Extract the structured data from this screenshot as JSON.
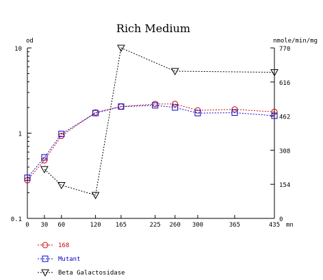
{
  "chart_data": {
    "type": "line",
    "title": "Rich Medium",
    "left_axis": {
      "label": "od",
      "scale": "log",
      "range": [
        0.1,
        10
      ],
      "tick_labels": [
        "10",
        "1",
        "0.1"
      ],
      "tick_values": [
        10,
        1,
        0.1
      ]
    },
    "right_axis": {
      "label": "nmole/min/mg",
      "scale": "linear",
      "range": [
        0,
        770
      ],
      "tick_labels": [
        "770",
        "616",
        "462",
        "308",
        "154",
        "0"
      ],
      "tick_values": [
        770,
        616,
        462,
        308,
        154,
        0
      ]
    },
    "x_axis": {
      "label": "mn",
      "range": [
        0,
        435
      ],
      "tick_labels": [
        "0",
        "30",
        "60",
        "120",
        "165",
        "225",
        "260",
        "300",
        "365",
        "435"
      ],
      "tick_values": [
        0,
        30,
        60,
        120,
        165,
        225,
        260,
        300,
        365,
        435
      ]
    },
    "series": [
      {
        "name": "168",
        "axis": "left",
        "color": "#cc0000",
        "marker": "circle",
        "x": [
          0,
          30,
          60,
          120,
          165,
          225,
          260,
          300,
          365,
          435
        ],
        "y": [
          0.28,
          0.48,
          0.93,
          1.75,
          2.05,
          2.2,
          2.2,
          1.85,
          1.9,
          1.78
        ]
      },
      {
        "name": "Mutant",
        "axis": "left",
        "color": "#0000cc",
        "marker": "square",
        "x": [
          0,
          30,
          60,
          120,
          165,
          225,
          260,
          300,
          365,
          435
        ],
        "y": [
          0.3,
          0.52,
          0.98,
          1.72,
          2.05,
          2.12,
          2.0,
          1.72,
          1.74,
          1.6
        ]
      },
      {
        "name": "Beta Galactosidase",
        "axis": "right",
        "color": "#000000",
        "marker": "triangle-down",
        "x": [
          30,
          60,
          120,
          165,
          260,
          435
        ],
        "y": [
          222,
          150,
          105,
          770,
          665,
          660
        ]
      }
    ],
    "grid": false,
    "legend_position": "bottom-left"
  }
}
